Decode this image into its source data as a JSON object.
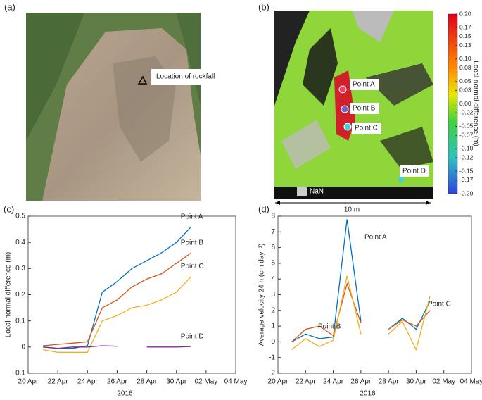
{
  "panel_a": {
    "label": "(a)",
    "annotation": "Location of rockfall"
  },
  "panel_b": {
    "label": "(b)",
    "points": [
      "Point A",
      "Point B",
      "Point C",
      "Point D"
    ],
    "nan_label": "NaN",
    "scale_label": "10 m",
    "colorbar": {
      "title": "Local normal difference (m)",
      "lim": [
        -0.2,
        0.2
      ],
      "ticks": [
        {
          "value": 0.2,
          "label": "0.20"
        },
        0.17,
        0.15,
        0.13,
        {
          "value": 0.1,
          "label": "0.10"
        },
        0.08,
        0.05,
        0.03,
        {
          "value": 0,
          "label": "0.00"
        },
        -0.02,
        -0.05,
        -0.07,
        {
          "value": -0.1,
          "label": "-0.10"
        },
        -0.12,
        -0.15,
        -0.17,
        {
          "value": -0.2,
          "label": "-0.20"
        }
      ]
    }
  },
  "chart_data": [
    {
      "type": "line",
      "panel_label": "(c)",
      "ylabel": "Local normal difference (m)",
      "xlabel": "2016",
      "x": [
        "2016-04-21",
        "2016-04-22",
        "2016-04-23",
        "2016-04-24",
        "2016-04-25",
        "2016-04-26",
        "2016-04-27",
        "2016-04-28",
        "2016-04-29",
        "2016-04-30",
        "2016-05-01"
      ],
      "xlim": [
        "2016-04-20",
        "2016-05-04"
      ],
      "xticks": [
        {
          "value": "2016-04-20",
          "label": "20 Apr"
        },
        {
          "value": "2016-04-22",
          "label": "22 Apr"
        },
        {
          "value": "2016-04-24",
          "label": "24 Apr"
        },
        {
          "value": "2016-04-26",
          "label": "26 Apr"
        },
        {
          "value": "2016-04-28",
          "label": "28 Apr"
        },
        {
          "value": "2016-04-30",
          "label": "30 Apr"
        },
        {
          "value": "2016-05-02",
          "label": "02 May"
        },
        {
          "value": "2016-05-04",
          "label": "04 May"
        }
      ],
      "ylim": [
        -0.1,
        0.5
      ],
      "yticks": [
        -0.1,
        0,
        0.1,
        0.2,
        0.3,
        0.4,
        0.5
      ],
      "series": [
        {
          "name": "Point A",
          "color": "#0072bd",
          "values": [
            0,
            -0.005,
            -0.005,
            0.005,
            0.21,
            0.25,
            0.3,
            0.33,
            0.36,
            0.4,
            0.46
          ]
        },
        {
          "name": "Point B",
          "color": "#d95319",
          "values": [
            0.005,
            0.01,
            0.015,
            0.02,
            0.15,
            0.18,
            0.23,
            0.26,
            0.28,
            0.32,
            0.36
          ]
        },
        {
          "name": "Point C",
          "color": "#edb120",
          "values": [
            -0.01,
            -0.02,
            -0.02,
            -0.02,
            0.1,
            0.12,
            0.15,
            0.16,
            0.18,
            0.21,
            0.27
          ]
        },
        {
          "name": "Point D",
          "color": "#7e2f8e",
          "values": [
            0,
            -0.005,
            0,
            0,
            0.005,
            0.003,
            null,
            0,
            0,
            0,
            0.002
          ]
        }
      ]
    },
    {
      "type": "line",
      "panel_label": "(d)",
      "ylabel": "Average velocity 24 h (cm day⁻¹)",
      "xlabel": "2016",
      "x": [
        "2016-04-21",
        "2016-04-22",
        "2016-04-23",
        "2016-04-24",
        "2016-04-25",
        "2016-04-26",
        "2016-04-27",
        "2016-04-28",
        "2016-04-29",
        "2016-04-30",
        "2016-05-01"
      ],
      "xlim": [
        "2016-04-20",
        "2016-05-04"
      ],
      "xticks": [
        {
          "value": "2016-04-20",
          "label": "20 Apr"
        },
        {
          "value": "2016-04-22",
          "label": "22 Apr"
        },
        {
          "value": "2016-04-24",
          "label": "24 Apr"
        },
        {
          "value": "2016-04-26",
          "label": "26 Apr"
        },
        {
          "value": "2016-04-28",
          "label": "28 Apr"
        },
        {
          "value": "2016-04-30",
          "label": "30 Apr"
        },
        {
          "value": "2016-05-02",
          "label": "02 May"
        },
        {
          "value": "2016-05-04",
          "label": "04 May"
        }
      ],
      "ylim": [
        -2,
        8
      ],
      "yticks": [
        -2,
        -1,
        0,
        1,
        2,
        3,
        4,
        5,
        6,
        7,
        8
      ],
      "series": [
        {
          "name": "Point A",
          "color": "#0072bd",
          "values": [
            0,
            0.5,
            0.2,
            0.3,
            7.8,
            1.3,
            null,
            0.8,
            1.5,
            0.8,
            2.6
          ]
        },
        {
          "name": "Point B",
          "color": "#d95319",
          "values": [
            0,
            0.8,
            1.0,
            0.4,
            3.7,
            1.2,
            null,
            0.8,
            1.4,
            1.0,
            2.0
          ]
        },
        {
          "name": "Point C",
          "color": "#edb120",
          "values": [
            -0.5,
            0.2,
            -0.3,
            0.1,
            4.2,
            0.5,
            null,
            0.5,
            1.3,
            -0.5,
            2.9
          ]
        }
      ]
    }
  ]
}
